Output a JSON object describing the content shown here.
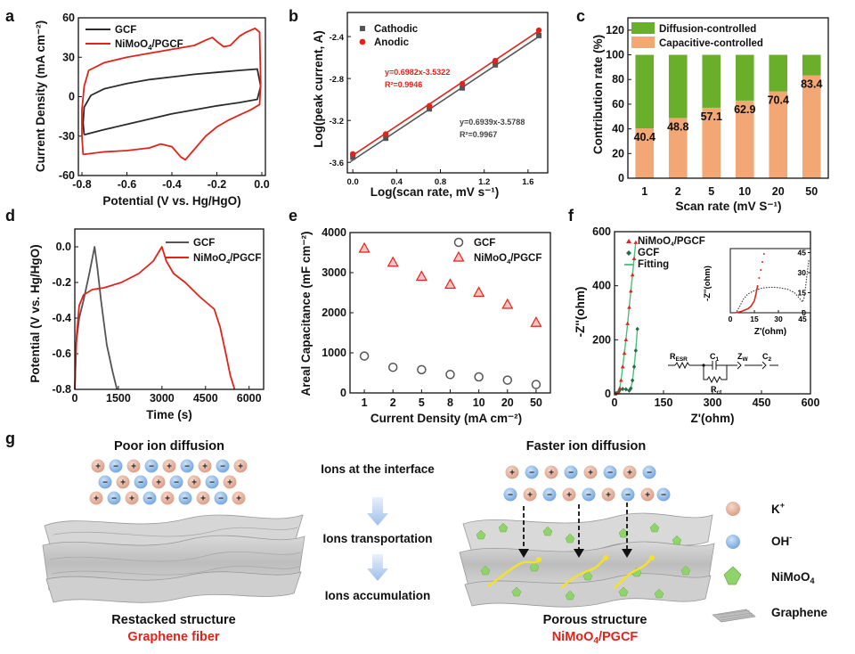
{
  "colors": {
    "black": "#2b2b2b",
    "red": "#e2231a",
    "green": "#6aaf2a",
    "orange": "#f2a774",
    "fit_green": "#49c07a",
    "k_ion": "#e3aa94",
    "oh_ion": "#7fb0e0",
    "nimoo4": "#8fd36b"
  },
  "panels": {
    "a": {
      "letter": "a"
    },
    "b": {
      "letter": "b"
    },
    "c": {
      "letter": "c"
    },
    "d": {
      "letter": "d"
    },
    "e": {
      "letter": "e"
    },
    "f": {
      "letter": "f"
    },
    "g": {
      "letter": "g"
    }
  },
  "chart_data": [
    {
      "id": "a",
      "type": "line",
      "xlabel": "Potential (V vs. Hg/HgO)",
      "ylabel": "Current Density (mA cm⁻²)",
      "xlim": [
        -0.8,
        0.0
      ],
      "ylim": [
        -60,
        60
      ],
      "xticks": [
        -0.8,
        -0.6,
        -0.4,
        -0.2,
        0.0
      ],
      "yticks": [
        -60,
        -30,
        0,
        30,
        60
      ],
      "xtick_labels": [
        "-0.8",
        "-0.6",
        "-0.4",
        "-0.2",
        "0.0"
      ],
      "ytick_labels": [
        "-60",
        "-30",
        "0",
        "30",
        "60"
      ],
      "series": [
        {
          "name": "GCF",
          "color": "#2b2b2b",
          "points": [
            [
              -0.79,
              -29
            ],
            [
              -0.7,
              -25
            ],
            [
              -0.6,
              -21
            ],
            [
              -0.5,
              -17
            ],
            [
              -0.4,
              -13
            ],
            [
              -0.3,
              -10
            ],
            [
              -0.2,
              -7
            ],
            [
              -0.1,
              -4.5
            ],
            [
              -0.02,
              -2
            ],
            [
              -0.005,
              8
            ],
            [
              -0.02,
              21
            ],
            [
              -0.1,
              20
            ],
            [
              -0.2,
              18.5
            ],
            [
              -0.3,
              17
            ],
            [
              -0.4,
              15
            ],
            [
              -0.5,
              13
            ],
            [
              -0.6,
              10
            ],
            [
              -0.7,
              6
            ],
            [
              -0.76,
              1
            ],
            [
              -0.79,
              -8
            ],
            [
              -0.795,
              -20
            ],
            [
              -0.79,
              -29
            ]
          ]
        },
        {
          "name": "NiMoO₄/PGCF",
          "color": "#e2231a",
          "points": [
            [
              -0.795,
              -44
            ],
            [
              -0.7,
              -42
            ],
            [
              -0.6,
              -41
            ],
            [
              -0.5,
              -39
            ],
            [
              -0.45,
              -36
            ],
            [
              -0.4,
              -38
            ],
            [
              -0.36,
              -46
            ],
            [
              -0.34,
              -48
            ],
            [
              -0.3,
              -40
            ],
            [
              -0.25,
              -30
            ],
            [
              -0.2,
              -23
            ],
            [
              -0.15,
              -18
            ],
            [
              -0.1,
              -14
            ],
            [
              -0.05,
              -10
            ],
            [
              -0.01,
              -6
            ],
            [
              -0.005,
              10
            ],
            [
              -0.01,
              49
            ],
            [
              -0.03,
              52
            ],
            [
              -0.07,
              49
            ],
            [
              -0.1,
              46
            ],
            [
              -0.14,
              39
            ],
            [
              -0.17,
              38
            ],
            [
              -0.2,
              42
            ],
            [
              -0.22,
              45
            ],
            [
              -0.25,
              43
            ],
            [
              -0.3,
              39
            ],
            [
              -0.4,
              36
            ],
            [
              -0.5,
              33
            ],
            [
              -0.6,
              30
            ],
            [
              -0.7,
              26
            ],
            [
              -0.77,
              20
            ],
            [
              -0.79,
              8
            ],
            [
              -0.8,
              -10
            ],
            [
              -0.8,
              -30
            ],
            [
              -0.795,
              -44
            ]
          ]
        }
      ],
      "legend": [
        {
          "label": "GCF"
        },
        {
          "label_main": "NiMoO",
          "label_sub": "4",
          "label_rest": "/PGCF"
        }
      ]
    },
    {
      "id": "b",
      "type": "scatter",
      "xlabel": "Log(scan rate, mV s⁻¹)",
      "ylabel": "Log(peak current, A)",
      "xlim": [
        -0.05,
        1.78
      ],
      "ylim": [
        -3.7,
        -2.17
      ],
      "xticks": [
        0.0,
        0.4,
        0.8,
        1.2,
        1.6
      ],
      "yticks": [
        -3.6,
        -3.2,
        -2.8,
        -2.4
      ],
      "xtick_labels": [
        "0.0",
        "0.4",
        "0.8",
        "1.2",
        "1.6"
      ],
      "ytick_labels": [
        "-3.6",
        "-3.2",
        "-2.8",
        "-2.4"
      ],
      "series": [
        {
          "name": "Cathodic",
          "color": "#555555",
          "marker": "square",
          "x": [
            0,
            0.301,
            0.699,
            1.0,
            1.301,
            1.699
          ],
          "y": [
            -3.55,
            -3.37,
            -3.09,
            -2.89,
            -2.67,
            -2.39
          ],
          "fit": {
            "slope": 0.6939,
            "intercept": -3.5788
          }
        },
        {
          "name": "Anodic",
          "color": "#e2231a",
          "marker": "circle",
          "x": [
            0,
            0.301,
            0.699,
            1.0,
            1.301,
            1.699
          ],
          "y": [
            -3.52,
            -3.33,
            -3.06,
            -2.85,
            -2.63,
            -2.34
          ],
          "fit": {
            "slope": 0.6982,
            "intercept": -3.5322
          }
        }
      ],
      "annotations": {
        "anodic_eq": "y=0.6982x-3.5322",
        "anodic_r2": "R²=0.9946",
        "cathodic_eq": "y=0.6939x-3.5788",
        "cathodic_r2": "R²=0.9967"
      }
    },
    {
      "id": "c",
      "type": "bar",
      "stacked": true,
      "xlabel": "Scan rate (mV S⁻¹)",
      "ylabel": "Contribution rate (%)",
      "ylim": [
        0,
        130
      ],
      "yticks": [
        0,
        20,
        40,
        60,
        80,
        100,
        120
      ],
      "ytick_labels": [
        "0",
        "20",
        "40",
        "60",
        "80",
        "100",
        "120"
      ],
      "categories": [
        "1",
        "2",
        "5",
        "10",
        "20",
        "50"
      ],
      "series": [
        {
          "name": "Capacitive-controlled",
          "color": "#f2a774",
          "values": [
            40.4,
            48.8,
            57.1,
            62.9,
            70.4,
            83.4
          ]
        },
        {
          "name": "Diffusion-controlled",
          "color": "#6aaf2a",
          "values": [
            59.6,
            51.2,
            42.9,
            37.1,
            29.6,
            16.6
          ]
        }
      ],
      "data_labels": [
        "40.4",
        "48.8",
        "57.1",
        "62.9",
        "70.4",
        "83.4"
      ],
      "legend": [
        "Diffusion-controlled",
        "Capacitive-controlled"
      ]
    },
    {
      "id": "d",
      "type": "line",
      "xlabel": "Time (s)",
      "ylabel": "Potential (V vs. Hg/HgO)",
      "xlim": [
        0,
        6500
      ],
      "ylim": [
        -0.8,
        0.1
      ],
      "xticks": [
        0,
        1500,
        3000,
        4500,
        6000
      ],
      "yticks": [
        -0.8,
        -0.6,
        -0.4,
        -0.2,
        0.0
      ],
      "xtick_labels": [
        "0",
        "1500",
        "3000",
        "4500",
        "6000"
      ],
      "ytick_labels": [
        "-0.8",
        "-0.6",
        "-0.4",
        "-0.2",
        "0.0"
      ],
      "series": [
        {
          "name": "GCF",
          "color": "#555555",
          "points": [
            [
              0,
              -0.8
            ],
            [
              40,
              -0.55
            ],
            [
              150,
              -0.4
            ],
            [
              300,
              -0.3
            ],
            [
              500,
              -0.15
            ],
            [
              680,
              0.0
            ],
            [
              780,
              -0.12
            ],
            [
              900,
              -0.3
            ],
            [
              1100,
              -0.55
            ],
            [
              1300,
              -0.7
            ],
            [
              1450,
              -0.8
            ]
          ]
        },
        {
          "name": "NiMoO₄/PGCF",
          "color": "#e2231a",
          "points": [
            [
              0,
              -0.8
            ],
            [
              60,
              -0.5
            ],
            [
              150,
              -0.33
            ],
            [
              300,
              -0.27
            ],
            [
              600,
              -0.24
            ],
            [
              1000,
              -0.23
            ],
            [
              1600,
              -0.2
            ],
            [
              2200,
              -0.15
            ],
            [
              2700,
              -0.08
            ],
            [
              3000,
              0.0
            ],
            [
              3150,
              -0.08
            ],
            [
              3400,
              -0.15
            ],
            [
              3800,
              -0.2
            ],
            [
              4300,
              -0.28
            ],
            [
              4800,
              -0.35
            ],
            [
              5000,
              -0.45
            ],
            [
              5200,
              -0.6
            ],
            [
              5350,
              -0.72
            ],
            [
              5500,
              -0.8
            ]
          ]
        }
      ],
      "legend": [
        {
          "label": "GCF"
        },
        {
          "label_main": "NiMoO",
          "label_sub": "4",
          "label_rest": "/PGCF"
        }
      ]
    },
    {
      "id": "e",
      "type": "scatter",
      "xlabel": "Current Density (mA cm⁻²)",
      "ylabel": "Areal Capacitance (mF cm⁻²)",
      "ylim": [
        0,
        4000
      ],
      "yticks": [
        0,
        1000,
        2000,
        3000,
        4000
      ],
      "ytick_labels": [
        "0",
        "1000",
        "2000",
        "3000",
        "4000"
      ],
      "categories": [
        "1",
        "2",
        "5",
        "8",
        "10",
        "20",
        "50"
      ],
      "series": [
        {
          "name": "GCF",
          "color": "#555555",
          "marker": "open-circle",
          "values": [
            920,
            640,
            580,
            460,
            400,
            320,
            210
          ]
        },
        {
          "name": "NiMoO₄/PGCF",
          "color": "#e2231a",
          "marker": "triangle",
          "values": [
            3600,
            3250,
            2900,
            2700,
            2500,
            2200,
            1750
          ]
        }
      ],
      "legend": [
        {
          "label": "GCF"
        },
        {
          "label_main": "NiMoO",
          "label_sub": "4",
          "label_rest": "/PGCF"
        }
      ]
    },
    {
      "id": "f",
      "type": "scatter",
      "xlabel": "Z'(ohm)",
      "ylabel": "-Z''(ohm)",
      "xlim": [
        0,
        600
      ],
      "ylim": [
        0,
        600
      ],
      "xticks": [
        0,
        150,
        300,
        450,
        600
      ],
      "yticks": [
        0,
        200,
        400,
        600
      ],
      "xtick_labels": [
        "0",
        "150",
        "300",
        "450",
        "600"
      ],
      "ytick_labels": [
        "0",
        "200",
        "400",
        "600"
      ],
      "series": [
        {
          "name": "NiMoO₄/PGCF",
          "color": "#e2231a",
          "marker": "triangle",
          "points": [
            [
              3,
              0
            ],
            [
              8,
              3
            ],
            [
              12,
              8
            ],
            [
              16,
              20
            ],
            [
              20,
              50
            ],
            [
              25,
              100
            ],
            [
              30,
              150
            ],
            [
              35,
              200
            ],
            [
              40,
              260
            ],
            [
              45,
              320
            ],
            [
              50,
              380
            ],
            [
              55,
              440
            ],
            [
              60,
              500
            ],
            [
              65,
              560
            ]
          ]
        },
        {
          "name": "GCF",
          "color": "#2a6b4a",
          "marker": "diamond",
          "points": [
            [
              5,
              2
            ],
            [
              15,
              12
            ],
            [
              25,
              18
            ],
            [
              35,
              17
            ],
            [
              45,
              12
            ],
            [
              50,
              20
            ],
            [
              55,
              50
            ],
            [
              60,
              100
            ],
            [
              65,
              160
            ],
            [
              70,
              240
            ]
          ]
        },
        {
          "name": "Fitting",
          "color": "#49c07a",
          "marker": "line"
        }
      ],
      "legend": [
        {
          "label_main": "NiMoO",
          "label_sub": "4",
          "label_rest": "/PGCF"
        },
        {
          "label": "GCF"
        },
        {
          "label": "Fitting"
        }
      ],
      "inset": {
        "xlabel": "Z'(ohm)",
        "ylabel": "-Z''(ohm)",
        "xlim": [
          0,
          50
        ],
        "ylim": [
          0,
          48
        ],
        "xticks": [
          0,
          15,
          30,
          45
        ],
        "yticks": [
          0,
          15,
          30,
          45
        ],
        "xtick_labels": [
          "0",
          "15",
          "30",
          "45"
        ],
        "ytick_labels": [
          "0",
          "15",
          "30",
          "45"
        ],
        "red_points": [
          [
            3,
            0
          ],
          [
            5,
            0.5
          ],
          [
            7,
            1
          ],
          [
            9,
            2
          ],
          [
            11,
            3
          ],
          [
            13,
            5
          ],
          [
            15,
            9
          ],
          [
            16,
            14
          ],
          [
            17,
            20
          ],
          [
            18,
            26
          ],
          [
            19,
            32
          ],
          [
            20,
            38
          ],
          [
            21,
            44
          ]
        ],
        "gcf_points": [
          [
            4,
            1
          ],
          [
            6,
            5
          ],
          [
            8,
            10
          ],
          [
            11,
            14
          ],
          [
            14,
            16
          ],
          [
            17,
            17.5
          ],
          [
            20,
            18.5
          ],
          [
            24,
            19
          ],
          [
            28,
            19
          ],
          [
            32,
            18.5
          ],
          [
            36,
            17.5
          ],
          [
            40,
            15
          ],
          [
            43,
            11
          ],
          [
            45,
            8
          ],
          [
            46,
            11
          ],
          [
            47,
            20
          ],
          [
            48,
            30
          ],
          [
            49,
            40
          ]
        ]
      },
      "circuit": {
        "r_esr": "R",
        "r_esr_sub": "ESR",
        "c1": "C",
        "c1_sub": "1",
        "zw": "Z",
        "zw_sub": "W",
        "c2": "C",
        "c2_sub": "2",
        "rct": "R",
        "rct_sub": "ct"
      }
    }
  ],
  "diagram_g": {
    "left_title": "Poor ion diffusion",
    "left_bottom": "Restacked structure",
    "left_sub": "Graphene fiber",
    "right_title": "Faster ion diffusion",
    "right_bottom": "Porous structure",
    "right_sub_main": "NiMoO",
    "right_sub_sub": "4",
    "right_sub_rest": "/PGCF",
    "step1": "Ions at the interface",
    "step2": "Ions transportation",
    "step3": "Ions accumulation",
    "legend_k_main": "K",
    "legend_k_sup": "+",
    "legend_oh_main": "OH",
    "legend_oh_sup": "-",
    "legend_nimoo4_main": "NiMoO",
    "legend_nimoo4_sub": "4",
    "legend_graphene": "Graphene",
    "ion_plus": "+",
    "ion_minus": "−"
  }
}
